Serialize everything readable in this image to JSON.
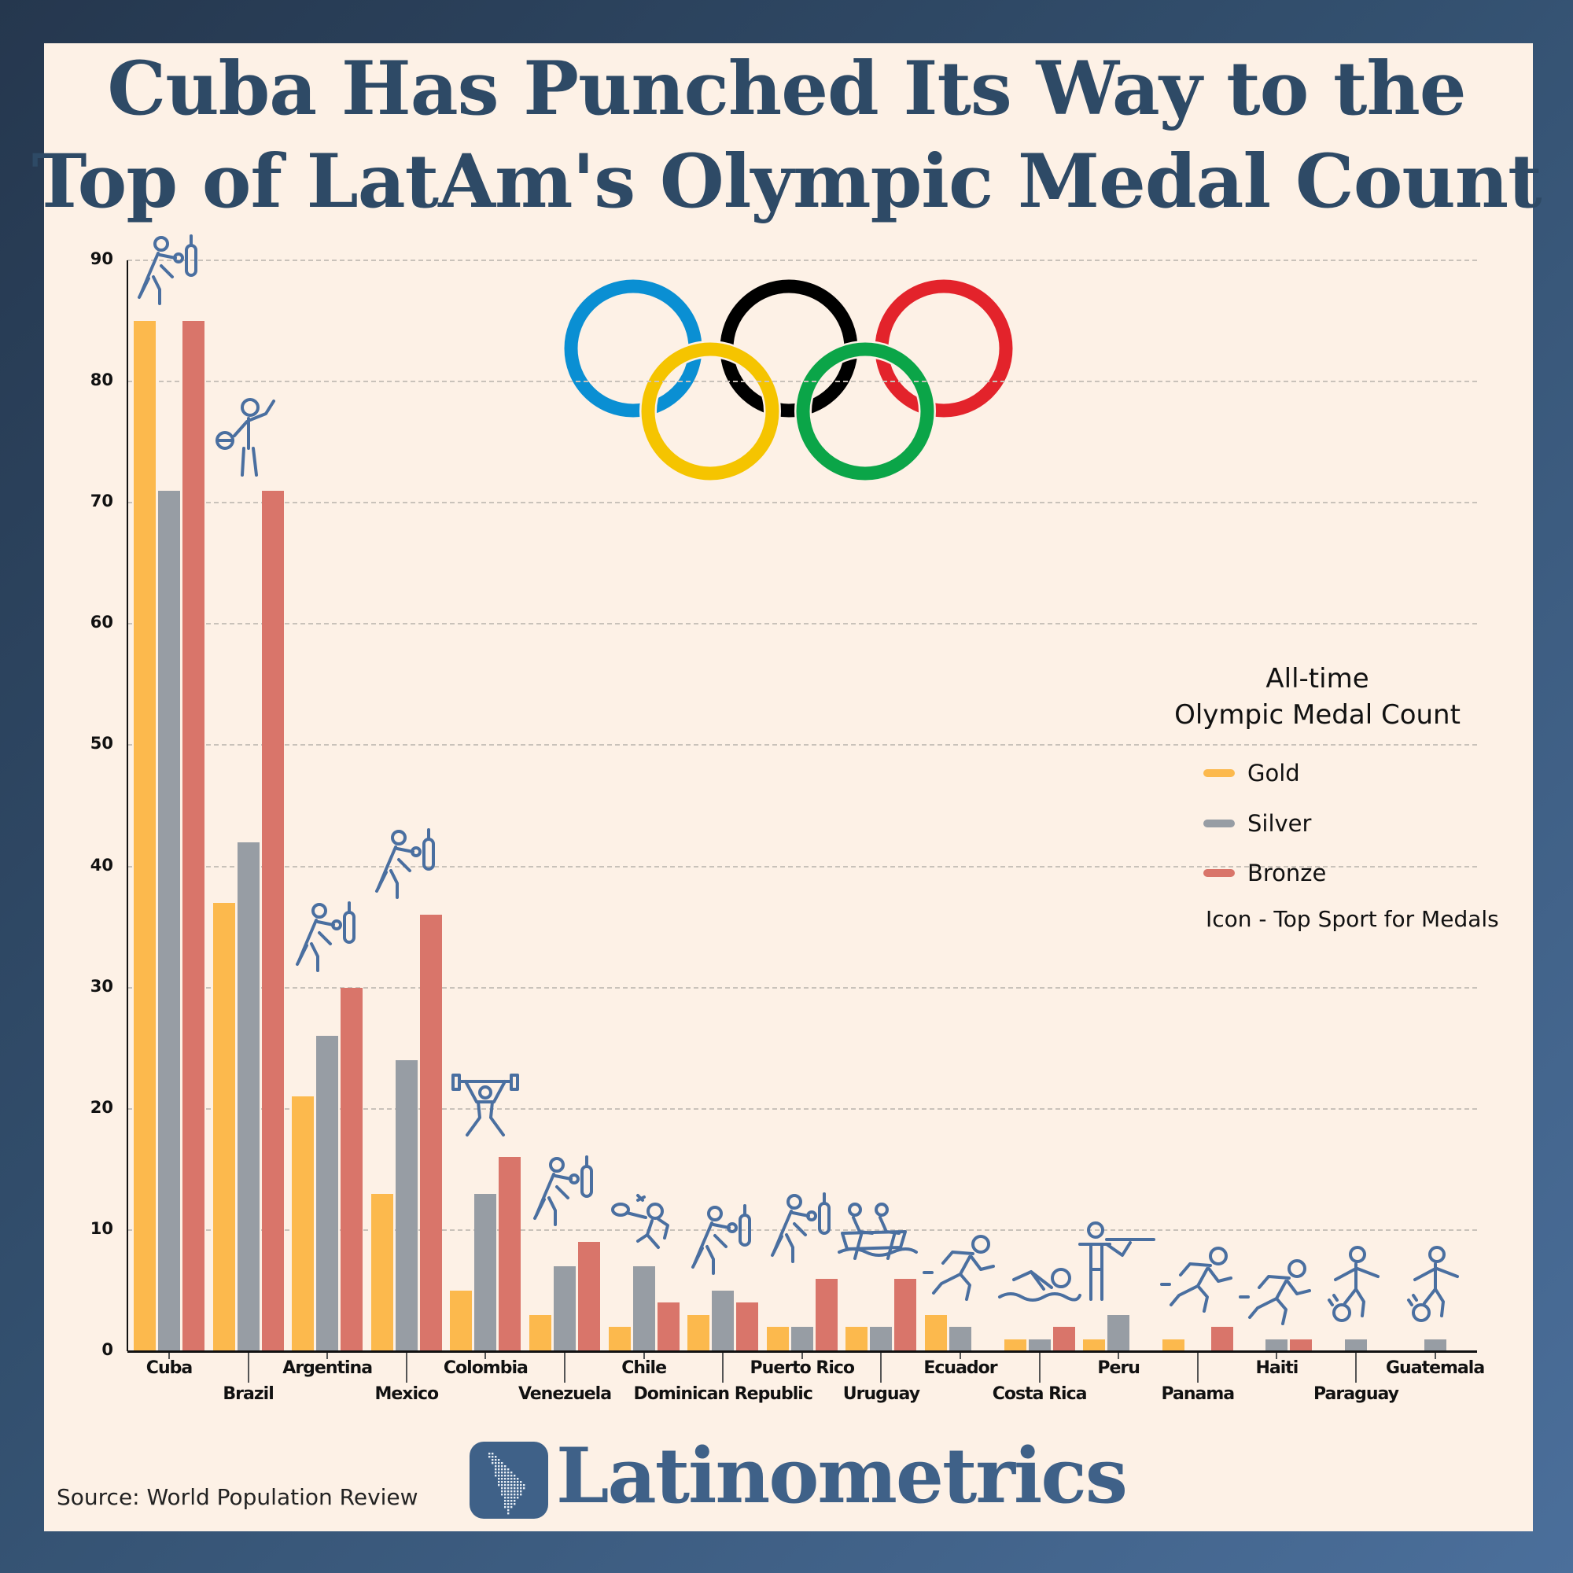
{
  "title": {
    "line1": "Cuba Has Punched Its Way to the",
    "line2": "Top of LatAm's Olympic Medal Count"
  },
  "legend": {
    "title_line1": "All-time",
    "title_line2": "Olympic Medal Count",
    "items": [
      {
        "label": "Gold",
        "color": "#fcb94d"
      },
      {
        "label": "Silver",
        "color": "#979da4"
      },
      {
        "label": "Bronze",
        "color": "#d9756a"
      }
    ],
    "note": "Icon - Top Sport for Medals"
  },
  "footer": {
    "source": "Source: World Population Review",
    "brand": "Latinometrics"
  },
  "colors": {
    "title": "#2e4a66",
    "panel": "#fdf1e6",
    "icon": "#4a6fa0",
    "brand": "#3f6188",
    "rings": [
      "#0a8fd3",
      "#f5c400",
      "#000000",
      "#0ba548",
      "#e3232b"
    ]
  },
  "chart_data": {
    "type": "bar",
    "title": "Cuba Has Punched Its Way to the Top of LatAm's Olympic Medal Count",
    "xlabel": "",
    "ylabel": "",
    "ylim": [
      0,
      90
    ],
    "yticks": [
      0,
      10,
      20,
      30,
      40,
      50,
      60,
      70,
      80,
      90
    ],
    "grid": true,
    "legend_position": "right",
    "categories": [
      "Cuba",
      "Brazil",
      "Argentina",
      "Mexico",
      "Colombia",
      "Venezuela",
      "Chile",
      "Dominican Republic",
      "Puerto Rico",
      "Uruguay",
      "Ecuador",
      "Costa Rica",
      "Peru",
      "Panama",
      "Haiti",
      "Paraguay",
      "Guatemala"
    ],
    "series": [
      {
        "name": "Gold",
        "color": "#fcb94d",
        "values": [
          85,
          37,
          21,
          13,
          5,
          3,
          2,
          3,
          2,
          2,
          3,
          1,
          1,
          1,
          0,
          0,
          0
        ]
      },
      {
        "name": "Silver",
        "color": "#979da4",
        "values": [
          71,
          42,
          26,
          24,
          13,
          7,
          7,
          5,
          2,
          2,
          2,
          1,
          3,
          0,
          1,
          1,
          1
        ]
      },
      {
        "name": "Bronze",
        "color": "#d9756a",
        "values": [
          85,
          71,
          30,
          36,
          16,
          9,
          4,
          4,
          6,
          6,
          0,
          2,
          0,
          2,
          1,
          0,
          0
        ]
      }
    ],
    "top_sport_icons": [
      "boxing",
      "basketball",
      "boxing",
      "boxing",
      "weightlifting",
      "boxing",
      "badminton",
      "boxing",
      "boxing",
      "rowing",
      "athletics",
      "swimming",
      "shooting",
      "athletics",
      "athletics",
      "football",
      "football"
    ],
    "annotations": [
      "Icon - Top Sport for Medals"
    ]
  }
}
